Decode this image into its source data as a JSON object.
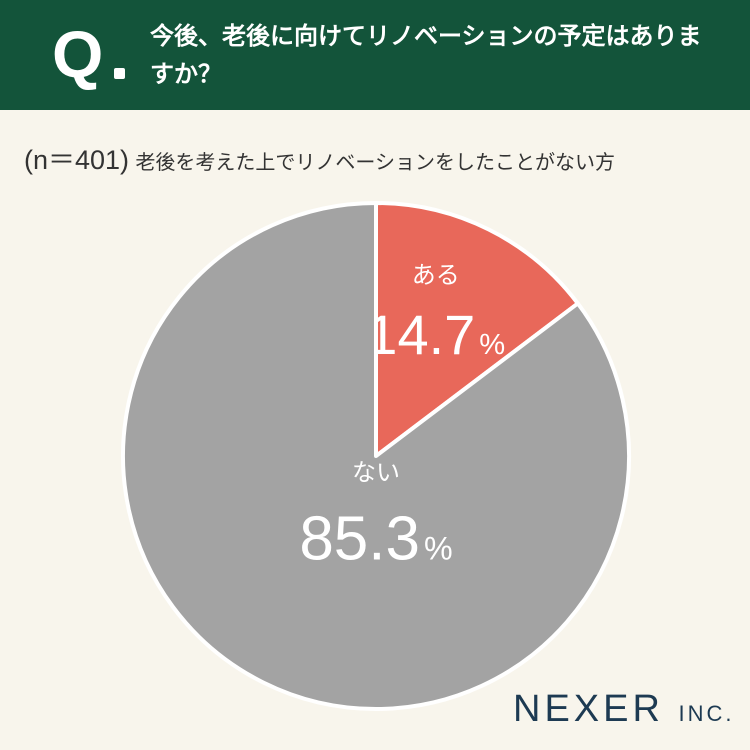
{
  "question": {
    "mark": "Q",
    "text": "今後、老後に向けてリノベーションの予定はありますか？"
  },
  "sample": {
    "n_label": "(n＝401)",
    "description": "老後を考えた上でリノベーションをしたことがない方"
  },
  "brand": {
    "name": "NEXER",
    "suffix": "INC."
  },
  "colors": {
    "header": "#13543a",
    "background": "#f8f5ec",
    "aru": "#e8685a",
    "nai": "#a3a3a3",
    "label": "#ffffff",
    "logo": "#1d3a52"
  },
  "chart_data": {
    "type": "pie",
    "start": "12 o'clock, clockwise",
    "unit": "%",
    "slices": [
      {
        "label": "ある",
        "value": 14.7,
        "color": "#e8685a"
      },
      {
        "label": "ない",
        "value": 85.3,
        "color": "#a3a3a3"
      }
    ]
  }
}
